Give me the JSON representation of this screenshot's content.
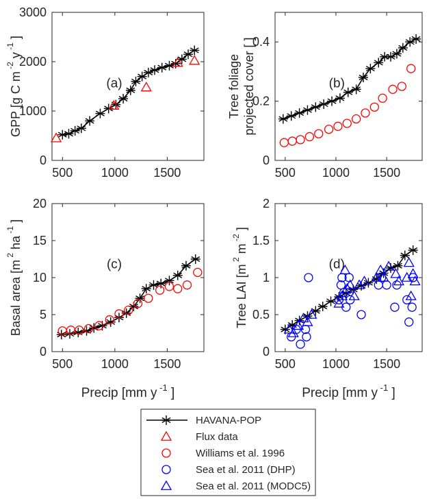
{
  "chart_data": [
    {
      "id": "a",
      "type": "line",
      "panel_label": "(a)",
      "ylabel": "GPP [g C m-2 y-1]",
      "ylabel_parts": {
        "base": "GPP [g C m",
        "exp1": "-2",
        "mid": " y",
        "exp2": "-1",
        "end": " ]"
      },
      "xlim": [
        400,
        1850
      ],
      "ylim": [
        0,
        3000
      ],
      "xticks": [
        500,
        1000,
        1500
      ],
      "yticks": [
        0,
        1000,
        2000,
        3000
      ],
      "grid": false,
      "series": [
        {
          "name": "HAVANA-POP",
          "marker": "asterisk",
          "line": true,
          "color": "#000000",
          "x": [
            500,
            560,
            620,
            680,
            760,
            860,
            940,
            1010,
            1080,
            1150,
            1200,
            1260,
            1320,
            1380,
            1450,
            1520,
            1580,
            1640,
            1700,
            1760
          ],
          "y": [
            520,
            540,
            600,
            650,
            800,
            950,
            1050,
            1130,
            1250,
            1420,
            1600,
            1700,
            1780,
            1830,
            1880,
            1920,
            1960,
            2050,
            2150,
            2230
          ]
        },
        {
          "name": "Flux data",
          "marker": "triangle",
          "color": "#ff0000",
          "x": [
            440,
            990,
            1300,
            1600,
            1760
          ],
          "y": [
            450,
            1110,
            1480,
            1980,
            2020
          ]
        }
      ]
    },
    {
      "id": "b",
      "type": "line",
      "panel_label": "(b)",
      "ylabel": "Tree foliage projected cover [ ]",
      "ylabel_lines": [
        "Tree foliage",
        "projected cover [ ]"
      ],
      "xlim": [
        400,
        1850
      ],
      "ylim": [
        0,
        0.5
      ],
      "xticks": [
        500,
        1000,
        1500
      ],
      "yticks": [
        0,
        0.2,
        0.4
      ],
      "grid": false,
      "series": [
        {
          "name": "HAVANA-POP",
          "marker": "asterisk",
          "line": true,
          "color": "#000000",
          "x": [
            480,
            560,
            640,
            720,
            800,
            880,
            960,
            1040,
            1120,
            1200,
            1270,
            1340,
            1420,
            1480,
            1540,
            1600,
            1660,
            1730,
            1790
          ],
          "y": [
            0.14,
            0.15,
            0.16,
            0.17,
            0.18,
            0.19,
            0.2,
            0.21,
            0.23,
            0.24,
            0.28,
            0.31,
            0.33,
            0.35,
            0.35,
            0.36,
            0.38,
            0.4,
            0.41
          ]
        },
        {
          "name": "Williams et al. 1996",
          "marker": "circle",
          "color": "#ff0000",
          "x": [
            490,
            570,
            650,
            740,
            830,
            930,
            1020,
            1110,
            1200,
            1290,
            1380,
            1460,
            1560,
            1650,
            1740
          ],
          "y": [
            0.06,
            0.065,
            0.07,
            0.08,
            0.09,
            0.105,
            0.115,
            0.125,
            0.14,
            0.16,
            0.18,
            0.21,
            0.24,
            0.25,
            0.31
          ]
        }
      ]
    },
    {
      "id": "c",
      "type": "line",
      "panel_label": "(c)",
      "ylabel": "Basal area [m 2 ha-1 ]",
      "ylabel_parts": {
        "base": "Basal area [m",
        "exp1": "2",
        "mid": " ha",
        "exp2": "-1",
        "end": " ]"
      },
      "xlim": [
        400,
        1850
      ],
      "ylim": [
        0,
        20
      ],
      "xticks": [
        500,
        1000,
        1500
      ],
      "yticks": [
        0,
        5,
        10,
        15,
        20
      ],
      "grid": false,
      "series": [
        {
          "name": "HAVANA-POP",
          "marker": "asterisk",
          "line": true,
          "color": "#000000",
          "x": [
            490,
            570,
            650,
            730,
            800,
            880,
            960,
            1040,
            1110,
            1180,
            1240,
            1300,
            1370,
            1440,
            1520,
            1600,
            1680,
            1770
          ],
          "y": [
            2.3,
            2.4,
            2.6,
            2.8,
            3.2,
            3.5,
            4.0,
            4.6,
            5.2,
            6.1,
            7.2,
            8.5,
            9.0,
            9.2,
            9.6,
            10.3,
            11.6,
            12.5
          ]
        },
        {
          "name": "Williams et al. 1996",
          "marker": "circle",
          "color": "#ff0000",
          "x": [
            500,
            580,
            660,
            750,
            850,
            950,
            1040,
            1130,
            1220,
            1320,
            1430,
            1520,
            1600,
            1690,
            1790
          ],
          "y": [
            2.8,
            2.9,
            2.9,
            3.1,
            3.5,
            4.3,
            5.1,
            5.6,
            6.5,
            7.2,
            8.3,
            8.8,
            8.5,
            9.0,
            10.7
          ]
        }
      ]
    },
    {
      "id": "d",
      "type": "line",
      "panel_label": "(d)",
      "ylabel": "Tree LAI [m 2 m-2 ]",
      "ylabel_parts": {
        "base": "Tree LAI [m",
        "exp1": "2",
        "mid": " m",
        "exp2": "-2",
        "end": " ]"
      },
      "xlim": [
        400,
        1850
      ],
      "ylim": [
        0,
        2
      ],
      "xticks": [
        500,
        1000,
        1500
      ],
      "yticks": [
        0,
        0.5,
        1,
        1.5,
        2
      ],
      "grid": false,
      "series": [
        {
          "name": "HAVANA-POP",
          "marker": "asterisk",
          "line": true,
          "color": "#000000",
          "x": [
            500,
            570,
            640,
            720,
            800,
            870,
            950,
            1030,
            1100,
            1170,
            1250,
            1320,
            1400,
            1470,
            1540,
            1610,
            1680,
            1760
          ],
          "y": [
            0.3,
            0.36,
            0.42,
            0.48,
            0.55,
            0.61,
            0.68,
            0.74,
            0.79,
            0.84,
            0.89,
            0.93,
            0.98,
            1.06,
            1.13,
            1.16,
            1.3,
            1.37
          ]
        },
        {
          "name": "Sea et al. 2011 (DHP)",
          "marker": "circle",
          "color": "#0000ff",
          "x": [
            560,
            610,
            650,
            700,
            710,
            730,
            1030,
            1050,
            1060,
            1080,
            1100,
            1130,
            1140,
            1250,
            1420,
            1450,
            1500,
            1580,
            1600,
            1700,
            1720,
            1750,
            1760
          ],
          "y": [
            0.2,
            0.3,
            0.1,
            0.3,
            0.2,
            1.0,
            0.7,
            0.9,
            1.0,
            0.8,
            0.6,
            1.0,
            0.7,
            0.5,
            0.9,
            1.0,
            0.9,
            0.6,
            0.9,
            0.7,
            0.4,
            0.6,
            1.0
          ]
        },
        {
          "name": "Sea et al. 2011 (MODC5)",
          "marker": "triangle",
          "color": "#0000ff",
          "x": [
            540,
            580,
            630,
            680,
            720,
            760,
            1030,
            1060,
            1090,
            1110,
            1140,
            1180,
            1230,
            1280,
            1400,
            1440,
            1470,
            1520,
            1590,
            1620,
            1700,
            1720,
            1740,
            1760,
            1780
          ],
          "y": [
            0.3,
            0.25,
            0.35,
            0.45,
            0.4,
            0.5,
            0.65,
            0.75,
            1.1,
            0.85,
            0.9,
            0.75,
            0.9,
            0.95,
            1.0,
            1.1,
            1.0,
            1.15,
            1.05,
            0.95,
            1.0,
            1.2,
            0.75,
            1.05,
            0.95
          ]
        }
      ]
    }
  ],
  "xlabel": {
    "base": "Precip [mm y",
    "exp": "-1",
    "end": " ]"
  },
  "legend": {
    "placement": "bottom-center",
    "entries": [
      {
        "name": "HAVANA-POP",
        "marker": "asterisk",
        "line": true,
        "color": "#000000"
      },
      {
        "name": "Flux data",
        "marker": "triangle",
        "color": "#ff0000"
      },
      {
        "name": "Williams et al. 1996",
        "marker": "circle",
        "color": "#ff0000"
      },
      {
        "name": "Sea et al. 2011 (DHP)",
        "marker": "circle",
        "color": "#0000ff"
      },
      {
        "name": "Sea et al. 2011 (MODC5)",
        "marker": "triangle",
        "color": "#0000ff"
      }
    ]
  }
}
